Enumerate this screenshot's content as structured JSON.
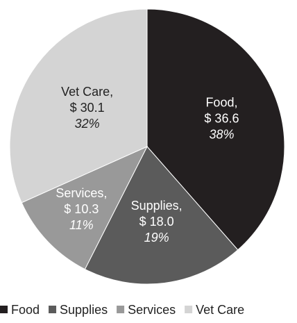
{
  "chart_data": {
    "type": "pie",
    "slices": [
      {
        "name": "Food",
        "value": 36.6,
        "value_label": "$ 36.6",
        "percent_label": "38%",
        "color": "#231f20",
        "text_color": "#ffffff"
      },
      {
        "name": "Supplies",
        "value": 18.0,
        "value_label": "$ 18.0",
        "percent_label": "19%",
        "color": "#5b5b5b",
        "text_color": "#ffffff"
      },
      {
        "name": "Services",
        "value": 10.3,
        "value_label": "$ 10.3",
        "percent_label": "11%",
        "color": "#999999",
        "text_color": "#ffffff"
      },
      {
        "name": "Vet Care",
        "value": 30.1,
        "value_label": "$ 30.1",
        "percent_label": "32%",
        "color": "#d4d4d4",
        "text_color": "#222222"
      }
    ],
    "legend_position": "bottom",
    "start_angle": "12 o'clock, clockwise"
  }
}
